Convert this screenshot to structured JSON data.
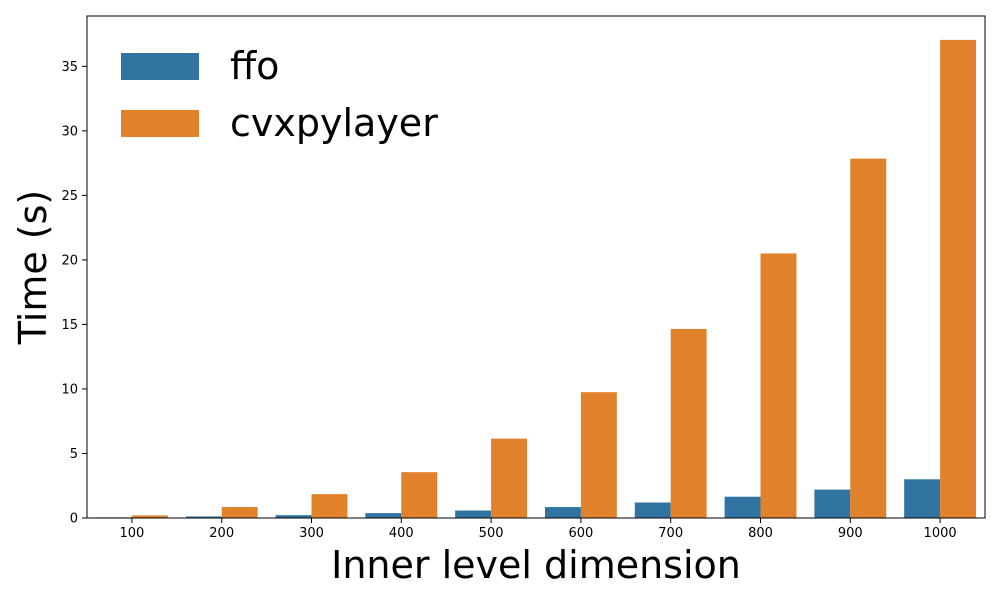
{
  "chart_data": {
    "type": "bar",
    "categories": [
      "100",
      "200",
      "300",
      "400",
      "500",
      "600",
      "700",
      "800",
      "900",
      "1000"
    ],
    "series": [
      {
        "name": "ffo",
        "values": [
          0.05,
          0.12,
          0.22,
          0.38,
          0.58,
          0.85,
          1.2,
          1.65,
          2.2,
          3.0
        ]
      },
      {
        "name": "cvxpylayer",
        "values": [
          0.2,
          0.85,
          1.85,
          3.55,
          6.15,
          9.75,
          14.65,
          20.5,
          27.85,
          37.05
        ]
      }
    ],
    "xlabel": "Inner level dimension",
    "ylabel": "Time (s)",
    "ylim": [
      0,
      38.9
    ],
    "yticks": [
      0,
      5,
      10,
      15,
      20,
      25,
      30,
      35
    ],
    "grid": false,
    "legend_position": "top-left"
  },
  "colors": {
    "series": [
      "#3274a1",
      "#e1812c"
    ],
    "axis": "#000000"
  }
}
